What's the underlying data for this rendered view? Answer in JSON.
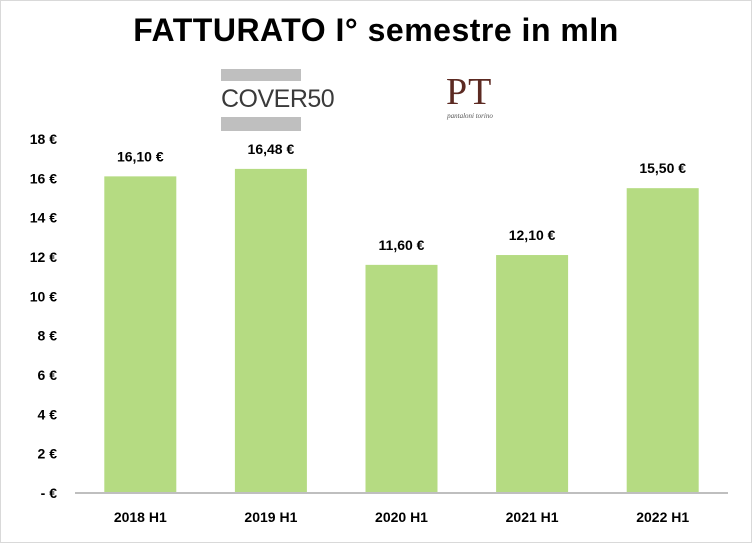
{
  "title": "FATTURATO I° semestre in mln",
  "logos": {
    "cover": "COVER50",
    "pt": "PT",
    "pt_sub": "pantaloni torino"
  },
  "colors": {
    "bar": "#b5db82",
    "axis": "#bfbfbf"
  },
  "chart_data": {
    "type": "bar",
    "title": "FATTURATO I° semestre in mln",
    "categories": [
      "2018 H1",
      "2019 H1",
      "2020 H1",
      "2021 H1",
      "2022 H1"
    ],
    "values": [
      16.1,
      16.48,
      11.6,
      12.1,
      15.5
    ],
    "value_labels": [
      "16,10 €",
      "16,48 €",
      "11,60 €",
      "12,10 €",
      "15,50 €"
    ],
    "ylim": [
      0,
      18
    ],
    "y_ticks": [
      0,
      2,
      4,
      6,
      8,
      10,
      12,
      14,
      16,
      18
    ],
    "y_tick_labels": [
      "- €",
      "2 €",
      "4 €",
      "6 €",
      "8 €",
      "10 €",
      "12 €",
      "14 €",
      "16 €",
      "18 €"
    ],
    "xlabel": "",
    "ylabel": "",
    "grid": false,
    "legend": "none"
  }
}
